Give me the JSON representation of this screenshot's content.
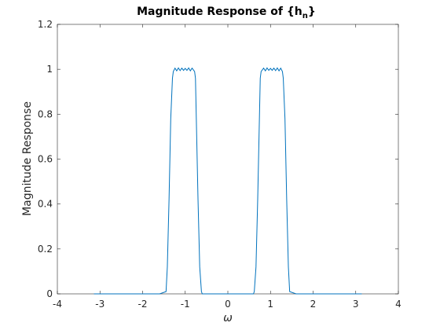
{
  "chart_data": {
    "type": "line",
    "title": {
      "prefix": "Magnitude Response of {h",
      "subscript": "n",
      "suffix": "}"
    },
    "xlabel": "ω",
    "ylabel": "Magnitude Response",
    "xlim": [
      -4,
      4
    ],
    "ylim": [
      0,
      1.2
    ],
    "xticks": [
      -4,
      -3,
      -2,
      -1,
      0,
      1,
      2,
      3,
      4
    ],
    "xtick_labels": [
      "-4",
      "-3",
      "-2",
      "-1",
      "0",
      "1",
      "2",
      "3",
      "4"
    ],
    "yticks": [
      0,
      0.2,
      0.4,
      0.6,
      0.8,
      1,
      1.2
    ],
    "ytick_labels": [
      "0",
      "0.2",
      "0.4",
      "0.6",
      "0.8",
      "1",
      "1.2"
    ],
    "grid": false,
    "line_color": "#0072BD",
    "series": [
      {
        "x": [
          -3.1416,
          -2.5,
          -2.0,
          -1.6,
          -1.45,
          -1.42,
          -1.38,
          -1.34,
          -1.3,
          -1.28,
          -1.24,
          -1.2,
          -1.16,
          -1.12,
          -1.08,
          -1.04,
          -1.0,
          -0.96,
          -0.92,
          -0.88,
          -0.84,
          -0.8,
          -0.78,
          -0.76,
          -0.74,
          -0.7,
          -0.66,
          -0.62,
          -0.6,
          -0.5,
          -0.3,
          0.0,
          0.3,
          0.5,
          0.6,
          0.62,
          0.66,
          0.7,
          0.74,
          0.76,
          0.78,
          0.8,
          0.84,
          0.88,
          0.92,
          0.96,
          1.0,
          1.04,
          1.08,
          1.12,
          1.16,
          1.2,
          1.24,
          1.28,
          1.3,
          1.34,
          1.38,
          1.42,
          1.45,
          1.6,
          2.0,
          2.5,
          3.1416
        ],
        "y": [
          0.0,
          0.0,
          0.0,
          0.0,
          0.01,
          0.12,
          0.42,
          0.78,
          0.96,
          0.99,
          1.005,
          0.993,
          1.006,
          0.994,
          1.005,
          0.995,
          1.004,
          0.995,
          1.006,
          0.993,
          1.005,
          0.995,
          0.99,
          0.96,
          0.78,
          0.42,
          0.12,
          0.01,
          0.0,
          0.0,
          0.0,
          0.0,
          0.0,
          0.0,
          0.0,
          0.01,
          0.12,
          0.42,
          0.78,
          0.96,
          0.99,
          0.995,
          1.005,
          0.993,
          1.006,
          0.995,
          1.004,
          0.995,
          1.005,
          0.994,
          1.006,
          0.993,
          1.005,
          0.99,
          0.96,
          0.78,
          0.42,
          0.12,
          0.01,
          0.0,
          0.0,
          0.0,
          0.0
        ]
      }
    ]
  }
}
